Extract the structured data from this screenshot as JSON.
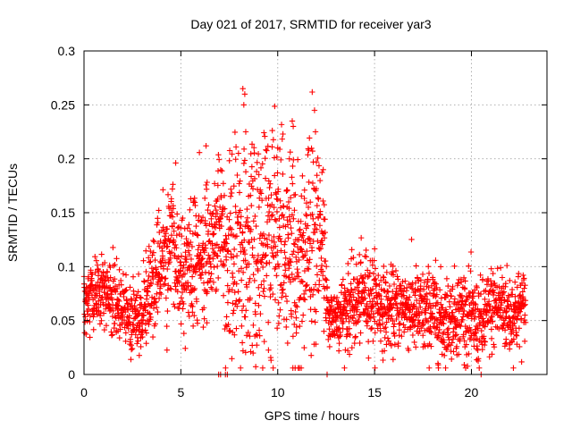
{
  "chart_data": {
    "type": "scatter",
    "title": "Day 021 of 2017, SRMTID for receiver yar3",
    "xlabel": "GPS time / hours",
    "ylabel": "SRMTID / TECUs",
    "xlim": [
      0,
      23.9
    ],
    "ylim": [
      0,
      0.3
    ],
    "xticks": [
      0,
      5,
      10,
      15,
      20
    ],
    "xtick_labels": [
      "0",
      "5",
      "10",
      "15",
      "20"
    ],
    "yticks": [
      0,
      0.05,
      0.1,
      0.15,
      0.2,
      0.25,
      0.3
    ],
    "ytick_labels": [
      "0",
      "0.05",
      "0.1",
      "0.15",
      "0.2",
      "0.25",
      "0.3"
    ],
    "grid": true,
    "marker": "+",
    "color": "#ff0000",
    "series": [
      {
        "name": "SRMTID",
        "envelope_hours": [
          0,
          0.5,
          1,
          1.5,
          2,
          2.5,
          3,
          3.5,
          4,
          4.5,
          5,
          5.5,
          6,
          6.5,
          7,
          7.5,
          8,
          8.5,
          9,
          9.5,
          10,
          10.5,
          11,
          11.5,
          12,
          12.4,
          12.6,
          13,
          13.5,
          14,
          14.5,
          15,
          15.5,
          16,
          16.5,
          17,
          17.5,
          18,
          18.5,
          19,
          19.5,
          20,
          20.5,
          21,
          21.5,
          22,
          22.5,
          22.8
        ],
        "envelope_mean": [
          0.065,
          0.08,
          0.07,
          0.07,
          0.065,
          0.05,
          0.055,
          0.08,
          0.105,
          0.12,
          0.095,
          0.105,
          0.11,
          0.12,
          0.13,
          0.12,
          0.1,
          0.12,
          0.11,
          0.125,
          0.13,
          0.115,
          0.095,
          0.12,
          0.13,
          0.12,
          0.05,
          0.055,
          0.06,
          0.065,
          0.075,
          0.07,
          0.06,
          0.06,
          0.065,
          0.06,
          0.055,
          0.06,
          0.05,
          0.055,
          0.06,
          0.05,
          0.045,
          0.06,
          0.065,
          0.055,
          0.06,
          0.065
        ],
        "envelope_spread": [
          0.015,
          0.018,
          0.018,
          0.02,
          0.015,
          0.015,
          0.02,
          0.022,
          0.025,
          0.028,
          0.025,
          0.028,
          0.03,
          0.03,
          0.035,
          0.04,
          0.05,
          0.055,
          0.05,
          0.05,
          0.055,
          0.05,
          0.05,
          0.05,
          0.05,
          0.04,
          0.015,
          0.015,
          0.018,
          0.02,
          0.02,
          0.02,
          0.018,
          0.018,
          0.018,
          0.02,
          0.02,
          0.02,
          0.02,
          0.018,
          0.02,
          0.02,
          0.02,
          0.02,
          0.02,
          0.02,
          0.018,
          0.015
        ],
        "sample_interval_hours": 0.009,
        "min_value": 0.0,
        "max_value": 0.265,
        "peak_points": [
          {
            "x": 8.2,
            "y": 0.265
          },
          {
            "x": 8.3,
            "y": 0.26
          },
          {
            "x": 8.25,
            "y": 0.25
          },
          {
            "x": 11.9,
            "y": 0.245
          },
          {
            "x": 10.75,
            "y": 0.235
          },
          {
            "x": 10.8,
            "y": 0.23
          },
          {
            "x": 11.95,
            "y": 0.225
          },
          {
            "x": 8.35,
            "y": 0.225
          },
          {
            "x": 10.0,
            "y": 0.21
          },
          {
            "x": 6.3,
            "y": 0.212
          },
          {
            "x": 10.6,
            "y": 0.2
          }
        ],
        "zero_points": [
          {
            "x": 6.95,
            "y": 0
          },
          {
            "x": 7.05,
            "y": 0
          },
          {
            "x": 7.3,
            "y": 0
          },
          {
            "x": 7.4,
            "y": 0
          },
          {
            "x": 12.55,
            "y": 0
          },
          {
            "x": 20.5,
            "y": 0
          }
        ]
      }
    ]
  }
}
